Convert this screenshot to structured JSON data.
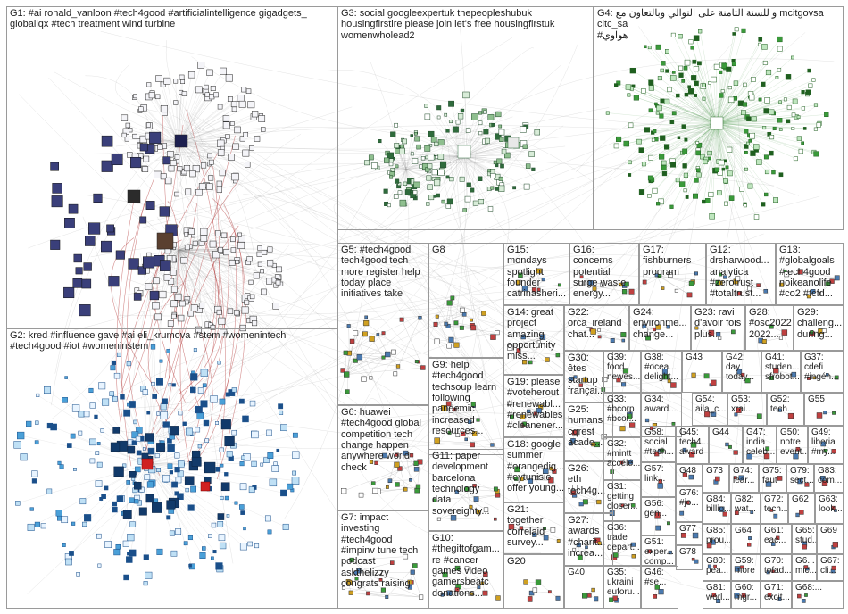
{
  "groups": [
    {
      "id": "G1",
      "label": "G1: #ai ronald_vanloon #tech4good #artificialintelligence gigadgets_\nglobaliqx #tech treatment wind turbine"
    },
    {
      "id": "G2",
      "label": "G2: kred #influence gave #ai eli_krumova #stem #womenintech\n#tech4good #iot #womeninstem"
    },
    {
      "id": "G3",
      "label": "G3: social googleexpertuk thepeopleshubuk\nhousingfirstire please join let's free housingfirstuk\nwomenwholead2"
    },
    {
      "id": "G4",
      "label": "G4: و للسنة الثامنة على التوالي وبالتعاون مع mcitgovsa citc_sa\n#هواوي"
    },
    {
      "id": "G5",
      "label": "G5: #tech4good\ntech4good tech\nmore register help\ntoday place\ninitiatives take"
    },
    {
      "id": "G6",
      "label": "G6: huawei\n#tech4good global\ncompetition tech\nchange happen\nanywhere world\ncheck"
    },
    {
      "id": "G7",
      "label": "G7: impact\ninvesting\n#tech4good\n#impinv tune tech\npodcast\naskthelizzy\ncongrats raising"
    },
    {
      "id": "G8",
      "label": "G8"
    },
    {
      "id": "G9",
      "label": "G9: help\n#tech4good\ntechsoup learn\nfollowing\npandemic\nincreased\nresources..."
    },
    {
      "id": "G10",
      "label": "G10:\n#thegiftofgam...\nre #cancer\ngames video\ngamersbeatc\ndonations..."
    },
    {
      "id": "G11",
      "label": "G11: paper\ndevelopment\nbarcelona\ntechnology\ndata\nsovereignty..."
    },
    {
      "id": "G12",
      "label": "G12:\ndrsharwood...\nanalytica\n#zerotrust\n#totaltrust..."
    },
    {
      "id": "G13",
      "label": "G13:\n#globalgoals\n#tech4good\nnoikeanolife\n#co2 #tcfd..."
    },
    {
      "id": "G14",
      "label": "G14: great\nproject\namazing\nopportunity\nmiss..."
    },
    {
      "id": "G15",
      "label": "G15:\nmondays\nspotlight\nfounder\ncatrinasheri..."
    },
    {
      "id": "G16",
      "label": "G16:\nconcerns\npotential\nsurge waste\nenergy..."
    },
    {
      "id": "G17",
      "label": "G17:\nfishburners\nprogram"
    },
    {
      "id": "G18",
      "label": "G18: google\nsummer\n#orangedig...\n#eytunisie\noffer young..."
    },
    {
      "id": "G19",
      "label": "G19: please\n#voteherout\n#renewabl...\n#renewables\n#cleanener..."
    },
    {
      "id": "G20",
      "label": "G20"
    },
    {
      "id": "G21",
      "label": "G21:\ntogether\ncorrelaid\nsurvey..."
    },
    {
      "id": "G22",
      "label": "G22:\norca_ireland\nchat..."
    },
    {
      "id": "G23",
      "label": "G23: ravi\nd'avoir fois\nplus..."
    },
    {
      "id": "G24",
      "label": "G24:\nenvironme...\nchange..."
    },
    {
      "id": "G25",
      "label": "G25:\nhumans\ncqrest\nacade..."
    },
    {
      "id": "G26",
      "label": "G26:\neth\ntech4g..."
    },
    {
      "id": "G27",
      "label": "G27:\nawards\n#charit...\nincrea..."
    },
    {
      "id": "G28",
      "label": "G28:\n#osc2022\n2022..."
    },
    {
      "id": "G29",
      "label": "G29:\nchalleng...\nduring..."
    },
    {
      "id": "G30",
      "label": "G30:\nêtes\nstartup\nfrançai..."
    },
    {
      "id": "G31",
      "label": "G31:\ngetting\ncloser..."
    },
    {
      "id": "G32",
      "label": "G32:\n#mintt\naccélé..."
    },
    {
      "id": "G33",
      "label": "G33:\n#bcorp\n#bcor..."
    },
    {
      "id": "G34",
      "label": "G34:\naward..."
    },
    {
      "id": "G35",
      "label": "G35:\nukraini\neuforu..."
    },
    {
      "id": "G36",
      "label": "G36:\ntrade\ndepart..."
    },
    {
      "id": "G37",
      "label": "G37:\ncdefi\n#ingén..."
    },
    {
      "id": "G38",
      "label": "G38:\n#ocea...\ndelight..."
    },
    {
      "id": "G39",
      "label": "G39:\nfood\nnewes..."
    },
    {
      "id": "G40",
      "label": "G40"
    },
    {
      "id": "G41",
      "label": "G41:\nstuden...\nsfrobot..."
    },
    {
      "id": "G42",
      "label": "G42:\nday\ntoday..."
    },
    {
      "id": "G43",
      "label": "G43"
    },
    {
      "id": "G44",
      "label": "G44"
    },
    {
      "id": "G45",
      "label": "G45:\ntech4...\naward"
    },
    {
      "id": "G46",
      "label": "G46:\n#se..."
    },
    {
      "id": "G47",
      "label": "G47:\nindia\nceleb..."
    },
    {
      "id": "G48",
      "label": "G48"
    },
    {
      "id": "G49",
      "label": "G49:\nliberia\n#my..."
    },
    {
      "id": "G50",
      "label": "G50:\nnotre\nevent..."
    },
    {
      "id": "G51",
      "label": "G51:\nexper...\ncomp..."
    },
    {
      "id": "G52",
      "label": "G52:\ntech..."
    },
    {
      "id": "G53",
      "label": "G53:\nxrai..."
    },
    {
      "id": "G54",
      "label": "G54:\naila_c..."
    },
    {
      "id": "G55",
      "label": "G55"
    },
    {
      "id": "G56",
      "label": "G56:\ngen..."
    },
    {
      "id": "G57",
      "label": "G57:\nlink..."
    },
    {
      "id": "G58",
      "label": "G58:\nsocial\n#tech..."
    },
    {
      "id": "G59",
      "label": "G59:\nmore"
    },
    {
      "id": "G60",
      "label": "G60:\nmgr..."
    },
    {
      "id": "G61",
      "label": "G61:\neac..."
    },
    {
      "id": "G62",
      "label": "G62"
    },
    {
      "id": "G63",
      "label": "G63:\nlook..."
    },
    {
      "id": "G64",
      "label": "G64"
    },
    {
      "id": "G65",
      "label": "G65:\nstud..."
    },
    {
      "id": "G66",
      "label": "G6...\nmic..."
    },
    {
      "id": "G67",
      "label": "G67:\ncli..."
    },
    {
      "id": "G68",
      "label": "G68:..."
    },
    {
      "id": "G69",
      "label": "G69"
    },
    {
      "id": "G70",
      "label": "G70:\ntofad..."
    },
    {
      "id": "G71",
      "label": "G71:\nexcit..."
    },
    {
      "id": "G72",
      "label": "G72:\ntech..."
    },
    {
      "id": "G73",
      "label": "G73"
    },
    {
      "id": "G74",
      "label": "G74:\nlear..."
    },
    {
      "id": "G75",
      "label": "G75:\nfaut"
    },
    {
      "id": "G76",
      "label": "G76:\n#jo..."
    },
    {
      "id": "G77",
      "label": "G77"
    },
    {
      "id": "G78",
      "label": "G78"
    },
    {
      "id": "G79",
      "label": "G79:\nsect..."
    },
    {
      "id": "G80",
      "label": "G80:\npea..."
    },
    {
      "id": "G81",
      "label": "G81:\nworl..."
    },
    {
      "id": "G82",
      "label": "G82:\nwat..."
    },
    {
      "id": "G83",
      "label": "G83:\ncom..."
    },
    {
      "id": "G84",
      "label": "G84:\nbillio..."
    },
    {
      "id": "G85",
      "label": "G85:\nprou..."
    }
  ],
  "colors": {
    "G1": "#2a2f6e",
    "G2": "#2a78b4",
    "G3": "#2f6b3c",
    "G4": "#3a9a3a",
    "edge": "#8c8c8c",
    "edge_red": "#b03030",
    "small": "#4a7ab0",
    "accent_red": "#d02020"
  }
}
